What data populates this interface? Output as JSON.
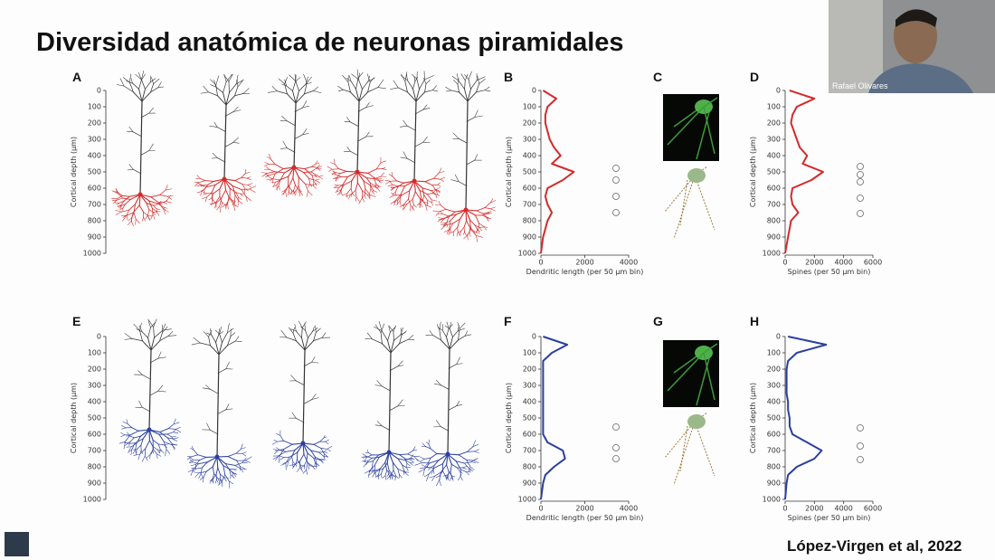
{
  "title": "Diversidad anatómica de neuronas piramidales",
  "webcam": {
    "name": "Rafael Olivares"
  },
  "citation": "López-Virgen et al, 2022",
  "depth_axis": {
    "label": "Cortical depth (μm)",
    "ylim": [
      0,
      1000
    ],
    "ticks": [
      0,
      100,
      200,
      300,
      400,
      500,
      600,
      700,
      800,
      900,
      1000
    ]
  },
  "panels": [
    {
      "letter": "A"
    },
    {
      "letter": "B",
      "xlabel": "Dendritic length (per 50 μm bin)",
      "xlim": [
        0,
        4000
      ],
      "xticks": [
        0,
        2000,
        4000
      ],
      "color": "#d42a2a",
      "depths": [
        0,
        50,
        100,
        150,
        200,
        250,
        300,
        350,
        400,
        450,
        500,
        550,
        600,
        650,
        700,
        750,
        800,
        850,
        900,
        950,
        1000
      ],
      "values": [
        100,
        700,
        300,
        200,
        200,
        300,
        400,
        600,
        900,
        500,
        1500,
        1000,
        300,
        200,
        300,
        500,
        300,
        200,
        100,
        50,
        0
      ]
    },
    {
      "letter": "C"
    },
    {
      "letter": "D",
      "xlabel": "Spines (per 50 μm bin)",
      "xlim": [
        0,
        6000
      ],
      "xticks": [
        0,
        2000,
        4000,
        6000
      ],
      "color": "#d42a2a",
      "depths": [
        0,
        50,
        100,
        150,
        200,
        250,
        300,
        350,
        400,
        450,
        500,
        550,
        600,
        650,
        700,
        750,
        800,
        850,
        900,
        950,
        1000
      ],
      "values": [
        300,
        2000,
        800,
        500,
        400,
        600,
        800,
        1000,
        1500,
        1200,
        2600,
        1800,
        500,
        400,
        500,
        900,
        400,
        300,
        200,
        100,
        0
      ]
    },
    {
      "letter": "E"
    },
    {
      "letter": "F",
      "xlabel": "Dendritic length (per 50 μm bin)",
      "xlim": [
        0,
        4000
      ],
      "xticks": [
        0,
        2000,
        4000
      ],
      "color": "#2b3f9e",
      "depths": [
        0,
        50,
        100,
        150,
        200,
        250,
        300,
        350,
        400,
        450,
        500,
        550,
        600,
        650,
        700,
        750,
        800,
        850,
        900,
        950,
        1000
      ],
      "values": [
        100,
        1200,
        500,
        100,
        100,
        100,
        100,
        100,
        100,
        100,
        100,
        100,
        100,
        300,
        1000,
        1100,
        600,
        200,
        100,
        50,
        0
      ]
    },
    {
      "letter": "G"
    },
    {
      "letter": "H",
      "xlabel": "Spines (per 50 μm bin)",
      "xlim": [
        0,
        6000
      ],
      "xticks": [
        0,
        2000,
        4000,
        6000
      ],
      "color": "#2b3f9e",
      "depths": [
        0,
        50,
        100,
        150,
        200,
        250,
        300,
        350,
        400,
        450,
        500,
        550,
        600,
        650,
        700,
        750,
        800,
        850,
        900,
        950,
        1000
      ],
      "values": [
        200,
        2800,
        800,
        200,
        100,
        100,
        100,
        100,
        200,
        200,
        300,
        300,
        500,
        1500,
        2500,
        2000,
        800,
        200,
        100,
        50,
        0
      ]
    }
  ]
}
